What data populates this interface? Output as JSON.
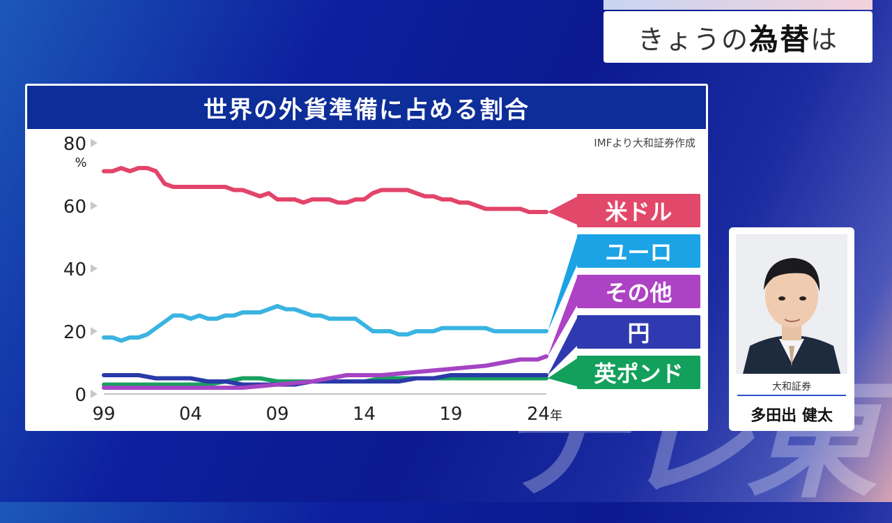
{
  "topic": {
    "prefix": "きょうの",
    "bold": "為替",
    "suffix": "は"
  },
  "chart_data": {
    "type": "line",
    "title": "世界の外貨準備に占める割合",
    "source": "IMFより大和証券作成",
    "y_unit": "%",
    "ylim": [
      0,
      80
    ],
    "y_ticks": [
      0,
      20,
      40,
      60,
      80
    ],
    "x_ticks": [
      "99",
      "04",
      "09",
      "14",
      "19",
      "24年"
    ],
    "x_tick_years": [
      1999,
      2004,
      2009,
      2014,
      2019,
      2024
    ],
    "xlim": [
      1999,
      2024.5
    ],
    "series": [
      {
        "name": "米ドル",
        "color": "#e2446a",
        "x": [
          1999,
          1999.5,
          2000,
          2000.5,
          2001,
          2001.5,
          2002,
          2002.5,
          2003,
          2003.5,
          2004,
          2004.5,
          2005,
          2005.5,
          2006,
          2006.5,
          2007,
          2007.5,
          2008,
          2008.5,
          2009,
          2009.5,
          2010,
          2010.5,
          2011,
          2011.5,
          2012,
          2012.5,
          2013,
          2013.5,
          2014,
          2014.5,
          2015,
          2015.5,
          2016,
          2016.5,
          2017,
          2017.5,
          2018,
          2018.5,
          2019,
          2019.5,
          2020,
          2020.5,
          2021,
          2021.5,
          2022,
          2022.5,
          2023,
          2023.5,
          2024,
          2024.5
        ],
        "values": [
          71,
          71,
          72,
          71,
          72,
          72,
          71,
          67,
          66,
          66,
          66,
          66,
          66,
          66,
          66,
          65,
          65,
          64,
          63,
          64,
          62,
          62,
          62,
          61,
          62,
          62,
          62,
          61,
          61,
          62,
          62,
          64,
          65,
          65,
          65,
          65,
          64,
          63,
          63,
          62,
          62,
          61,
          61,
          60,
          59,
          59,
          59,
          59,
          59,
          58,
          58,
          58
        ]
      },
      {
        "name": "ユーロ",
        "color": "#3ab4e0",
        "x": [
          1999,
          1999.5,
          2000,
          2000.5,
          2001,
          2001.5,
          2002,
          2002.5,
          2003,
          2003.5,
          2004,
          2004.5,
          2005,
          2005.5,
          2006,
          2006.5,
          2007,
          2007.5,
          2008,
          2008.5,
          2009,
          2009.5,
          2010,
          2010.5,
          2011,
          2011.5,
          2012,
          2012.5,
          2013,
          2013.5,
          2014,
          2014.5,
          2015,
          2015.5,
          2016,
          2016.5,
          2017,
          2017.5,
          2018,
          2018.5,
          2019,
          2019.5,
          2020,
          2020.5,
          2021,
          2021.5,
          2022,
          2022.5,
          2023,
          2023.5,
          2024,
          2024.5
        ],
        "values": [
          18,
          18,
          17,
          18,
          18,
          19,
          21,
          23,
          25,
          25,
          24,
          25,
          24,
          24,
          25,
          25,
          26,
          26,
          26,
          27,
          28,
          27,
          27,
          26,
          25,
          25,
          24,
          24,
          24,
          24,
          22,
          20,
          20,
          20,
          19,
          19,
          20,
          20,
          20,
          21,
          21,
          21,
          21,
          21,
          21,
          20,
          20,
          20,
          20,
          20,
          20,
          20
        ]
      },
      {
        "name": "その他",
        "color": "#a544c4",
        "x": [
          1999,
          2001,
          2003,
          2005,
          2007,
          2009,
          2011,
          2013,
          2015,
          2017,
          2019,
          2021,
          2022,
          2023,
          2024,
          2024.5
        ],
        "values": [
          2,
          2,
          2,
          2,
          2,
          3,
          4,
          6,
          6,
          7,
          8,
          9,
          10,
          11,
          11,
          12
        ]
      },
      {
        "name": "円",
        "color": "#2a3aa8",
        "x": [
          1999,
          1999.5,
          2000,
          2001,
          2002,
          2003,
          2004,
          2005,
          2006,
          2007,
          2008,
          2009,
          2010,
          2011,
          2012,
          2013,
          2014,
          2015,
          2016,
          2017,
          2018,
          2019,
          2020,
          2021,
          2022,
          2023,
          2024,
          2024.5
        ],
        "values": [
          6,
          6,
          6,
          6,
          5,
          5,
          5,
          4,
          4,
          3,
          3,
          3,
          3,
          4,
          4,
          4,
          4,
          4,
          4,
          5,
          5,
          6,
          6,
          6,
          6,
          6,
          6,
          6
        ]
      },
      {
        "name": "英ポンド",
        "color": "#18a060",
        "x": [
          1999,
          2001,
          2003,
          2005,
          2006,
          2007,
          2008,
          2009,
          2010,
          2011,
          2012,
          2013,
          2014,
          2015,
          2016,
          2017,
          2018,
          2019,
          2020,
          2021,
          2022,
          2023,
          2024,
          2024.5
        ],
        "values": [
          3,
          3,
          3,
          3,
          4,
          5,
          5,
          4,
          4,
          4,
          4,
          4,
          4,
          5,
          5,
          5,
          5,
          5,
          5,
          5,
          5,
          5,
          5,
          5
        ]
      }
    ]
  },
  "legend": [
    {
      "label": "米ドル",
      "color": "#e2486a"
    },
    {
      "label": "ユーロ",
      "color": "#1ba3e6"
    },
    {
      "label": "その他",
      "color": "#ad42c4"
    },
    {
      "label": "円",
      "color": "#2f3ab0"
    },
    {
      "label": "英ポンド",
      "color": "#12a05c"
    }
  ],
  "speaker": {
    "company": "大和証券",
    "name": "多田出 健太"
  },
  "watermark": "テレ東"
}
